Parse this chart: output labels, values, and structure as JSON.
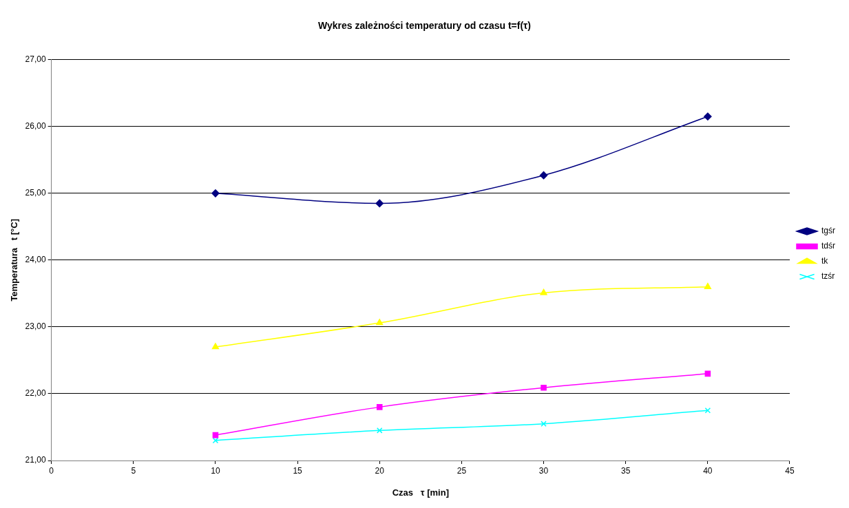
{
  "chart_data": {
    "type": "line",
    "title": "Wykres zależności temperatury od czasu t=f(τ)",
    "xlabel": "Czas   τ [min]",
    "ylabel": "Temperatura   t [°C]",
    "x": [
      10,
      20,
      30,
      40
    ],
    "series": [
      {
        "name": "tgśr",
        "color": "#000080",
        "marker": "diamond",
        "values": [
          25.0,
          24.85,
          25.27,
          26.15
        ]
      },
      {
        "name": "tdśr",
        "color": "#ff00ff",
        "marker": "square",
        "values": [
          21.38,
          21.8,
          22.09,
          22.3
        ]
      },
      {
        "name": "tk",
        "color": "#ffff00",
        "marker": "triangle",
        "values": [
          22.7,
          23.06,
          23.51,
          23.6
        ]
      },
      {
        "name": "tzśr",
        "color": "#00ffff",
        "marker": "cross",
        "values": [
          21.3,
          21.45,
          21.55,
          21.75
        ]
      }
    ],
    "xlim": [
      0,
      45
    ],
    "xticks": [
      0,
      5,
      10,
      15,
      20,
      25,
      30,
      35,
      40,
      45
    ],
    "ylim": [
      21,
      27
    ],
    "yticks": [
      {
        "value": 21,
        "label": "21,00"
      },
      {
        "value": 22,
        "label": "22,00"
      },
      {
        "value": 23,
        "label": "23,00"
      },
      {
        "value": 24,
        "label": "24,00"
      },
      {
        "value": 25,
        "label": "25,00"
      },
      {
        "value": 26,
        "label": "26,00"
      },
      {
        "value": 27,
        "label": "27,00"
      }
    ],
    "grid": "y",
    "legend": "right"
  }
}
